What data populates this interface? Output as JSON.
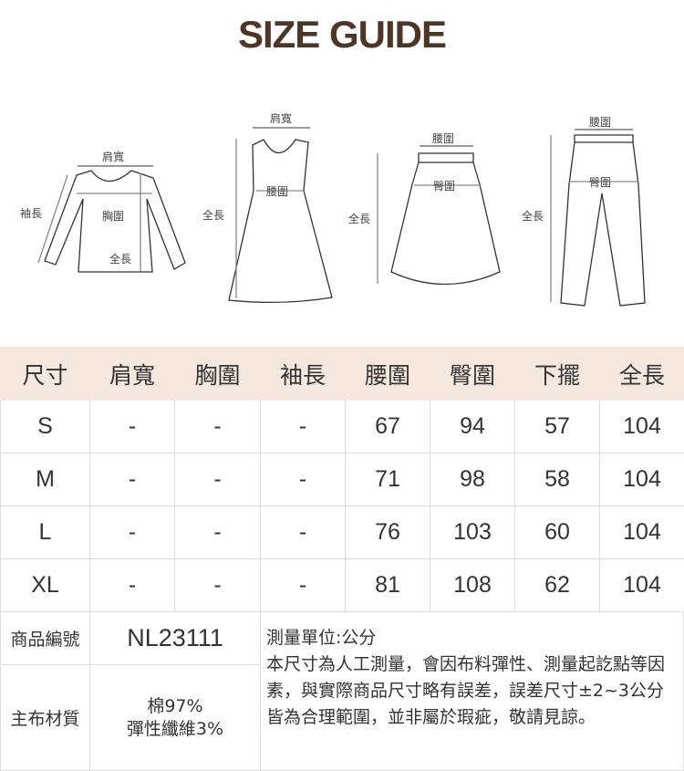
{
  "title": "SIZE GUIDE",
  "figures": {
    "shoulder": "肩寬",
    "chest": "胸圍",
    "sleeve": "袖長",
    "length": "全長",
    "waist": "腰圍",
    "hip": "臀圍"
  },
  "table": {
    "headers": [
      "尺寸",
      "肩寬",
      "胸圍",
      "袖長",
      "腰圍",
      "臀圍",
      "下擺",
      "全長"
    ],
    "rows": [
      [
        "S",
        "-",
        "-",
        "-",
        "67",
        "94",
        "57",
        "104"
      ],
      [
        "M",
        "-",
        "-",
        "-",
        "71",
        "98",
        "58",
        "104"
      ],
      [
        "L",
        "-",
        "-",
        "-",
        "76",
        "103",
        "60",
        "104"
      ],
      [
        "XL",
        "-",
        "-",
        "-",
        "81",
        "108",
        "62",
        "104"
      ]
    ]
  },
  "info": {
    "code_label": "商品編號",
    "code": "NL23111",
    "material_label": "主布材質",
    "material_1": "棉97%",
    "material_2": "彈性纖維3%",
    "unit": "測量單位:公分",
    "note": "本尺寸為人工測量，會因布料彈性、測量起訖點等因素，與實際商品尺寸略有誤差，誤差尺寸±2~3公分皆為合理範圍，並非屬於瑕疵，敬請見諒。"
  }
}
